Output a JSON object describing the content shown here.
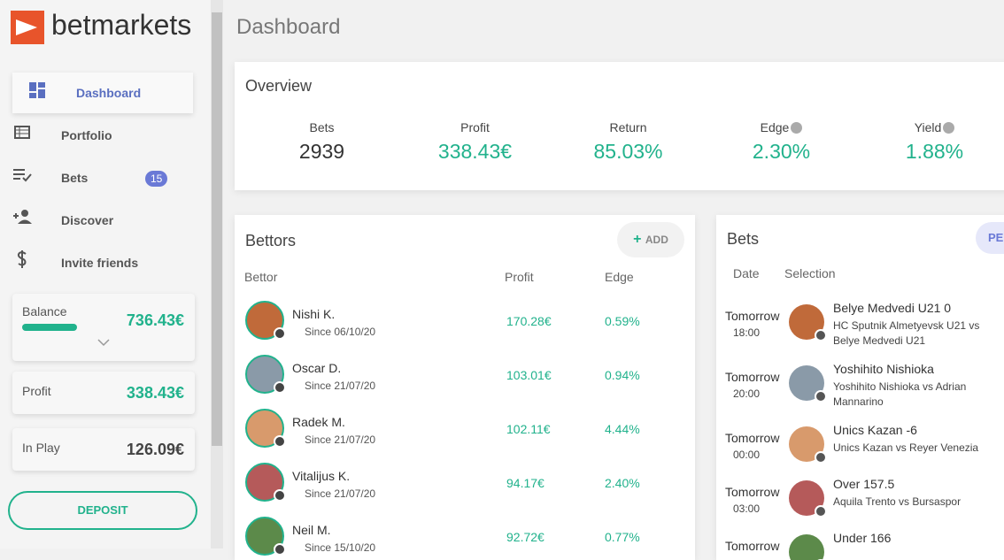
{
  "sidebar": {
    "brand": "betmarkets",
    "nav": [
      "Dashboard",
      "Portfolio",
      "Bets",
      "Discover",
      "Invite friends"
    ],
    "bets_badge": "15",
    "balance": {
      "label": "Balance",
      "value": "736.43€"
    },
    "profit": {
      "label": "Profit",
      "value": "338.43€"
    },
    "in_play": {
      "label": "In Play",
      "value": "126.09€"
    },
    "deposit": "DEPOSIT"
  },
  "header": {
    "title": "Dashboard"
  },
  "overview": {
    "title": "Overview",
    "stats": [
      {
        "label": "Bets",
        "value": "2939"
      },
      {
        "label": "Profit",
        "value": "338.43€"
      },
      {
        "label": "Return",
        "value": "85.03%"
      },
      {
        "label": "Edge",
        "value": "2.30%"
      },
      {
        "label": "Yield",
        "value": "1.88%"
      }
    ]
  },
  "bettors": {
    "title": "Bettors",
    "add": "ADD",
    "columns": [
      "Bettor",
      "Profit",
      "Edge"
    ],
    "rows": [
      {
        "name": "Nishi K.",
        "since": "Since 06/10/20",
        "profit": "170.28€",
        "edge": "0.59%"
      },
      {
        "name": "Oscar D.",
        "since": "Since 21/07/20",
        "profit": "103.01€",
        "edge": "0.94%"
      },
      {
        "name": "Radek M.",
        "since": "Since 21/07/20",
        "profit": "102.11€",
        "edge": "4.44%"
      },
      {
        "name": "Vitalijus K.",
        "since": "Since 21/07/20",
        "profit": "94.17€",
        "edge": "2.40%"
      },
      {
        "name": "Neil M.",
        "since": "Since 15/10/20",
        "profit": "92.72€",
        "edge": "0.77%"
      }
    ]
  },
  "bets": {
    "title": "Bets",
    "button": "PE",
    "columns": [
      "Date",
      "Selection"
    ],
    "rows": [
      {
        "day": "Tomorrow",
        "time": "18:00",
        "selection": "Belye Medvedi U21 0",
        "match": "HC Sputnik Almetyevsk U21 vs Belye Medvedi U21"
      },
      {
        "day": "Tomorrow",
        "time": "20:00",
        "selection": "Yoshihito Nishioka",
        "match": "Yoshihito Nishioka vs Adrian Mannarino"
      },
      {
        "day": "Tomorrow",
        "time": "00:00",
        "selection": "Unics Kazan -6",
        "match": "Unics Kazan vs Reyer Venezia"
      },
      {
        "day": "Tomorrow",
        "time": "03:00",
        "selection": "Over 157.5",
        "match": "Aquila Trento vs Bursaspor"
      },
      {
        "day": "Tomorrow",
        "selection": "Under 166"
      }
    ]
  }
}
